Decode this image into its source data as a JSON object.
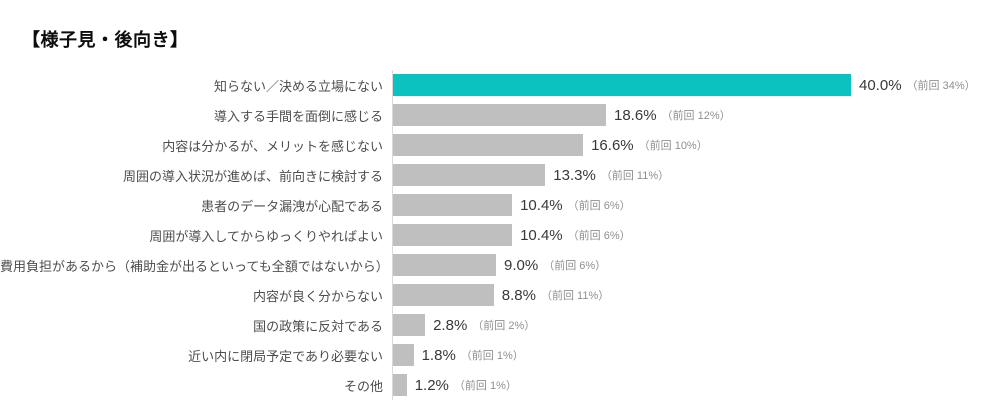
{
  "title": "【様子見・後向き】",
  "chart_data": {
    "type": "bar",
    "orientation": "horizontal",
    "title": "【様子見・後向き】",
    "xlabel": "",
    "ylabel": "",
    "unit": "%",
    "xlim": [
      0,
      50
    ],
    "grid": false,
    "legend": "none",
    "bar_color": "#bfbfbf",
    "highlight_color": "#0bc2c0",
    "axis_line_color": "#d9d9d9",
    "categories": [
      "知らない／決める立場にない",
      "導入する手間を面倒に感じる",
      "内容は分かるが、メリットを感じない",
      "周囲の導入状況が進めば、前向きに検討する",
      "患者のデータ漏洩が心配である",
      "周囲が導入してからゆっくりやればよい",
      "費用負担があるから（補助金が出るといっても全額ではないから）",
      "内容が良く分からない",
      "国の政策に反対である",
      "近い内に閉局予定であり必要ない",
      "その他"
    ],
    "values": [
      40.0,
      18.6,
      16.6,
      13.3,
      10.4,
      10.4,
      9.0,
      8.8,
      2.8,
      1.8,
      1.2
    ],
    "previous_values": [
      34,
      12,
      10,
      11,
      6,
      6,
      6,
      11,
      2,
      1,
      1
    ],
    "value_labels": [
      "40.0%",
      "18.6%",
      "16.6%",
      "13.3%",
      "10.4%",
      "10.4%",
      "9.0%",
      "8.8%",
      "2.8%",
      "1.8%",
      "1.2%"
    ],
    "previous_labels": [
      "（前回 34%）",
      "（前回 12%）",
      "（前回 10%）",
      "（前回 11%）",
      "（前回 6%）",
      "（前回 6%）",
      "（前回 6%）",
      "（前回 11%）",
      "（前回 2%）",
      "（前回 1%）",
      "（前回 1%）"
    ],
    "highlighted_index": 0
  }
}
